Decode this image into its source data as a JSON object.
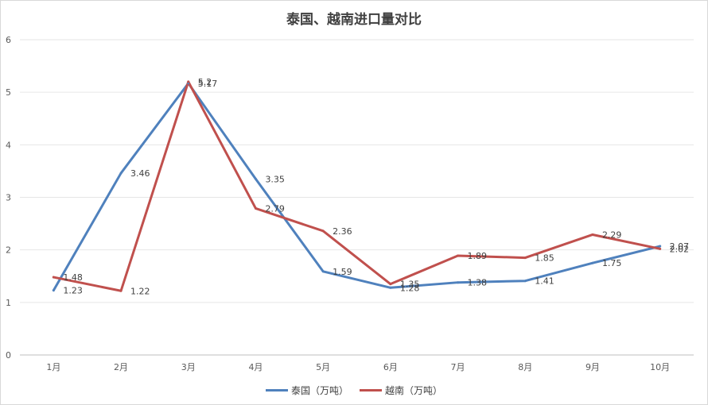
{
  "chart_data": {
    "type": "line",
    "title": "泰国、越南进口量对比",
    "categories": [
      "1月",
      "2月",
      "3月",
      "4月",
      "5月",
      "6月",
      "7月",
      "8月",
      "9月",
      "10月"
    ],
    "ylim": [
      0,
      6
    ],
    "yticks": [
      "0",
      "1",
      "2",
      "3",
      "4",
      "5",
      "6"
    ],
    "grid": true,
    "legend_position": "bottom",
    "series": [
      {
        "name": "泰国（万吨）",
        "color": "#4f81bd",
        "values": [
          1.23,
          3.46,
          5.17,
          3.35,
          1.59,
          1.28,
          1.38,
          1.41,
          1.75,
          2.07
        ],
        "labels": [
          "1.23",
          "3.46",
          "5.17",
          "3.35",
          "1.59",
          "1.28",
          "1.38",
          "1.41",
          "1.75",
          "2.07"
        ]
      },
      {
        "name": "越南（万吨）",
        "color": "#c0504d",
        "values": [
          1.48,
          1.22,
          5.2,
          2.79,
          2.36,
          1.35,
          1.89,
          1.85,
          2.29,
          2.02
        ],
        "labels": [
          "1.48",
          "1.22",
          "5.2",
          "2.79",
          "2.36",
          "1.35",
          "1.89",
          "1.85",
          "2.29",
          "2.02"
        ]
      }
    ]
  }
}
